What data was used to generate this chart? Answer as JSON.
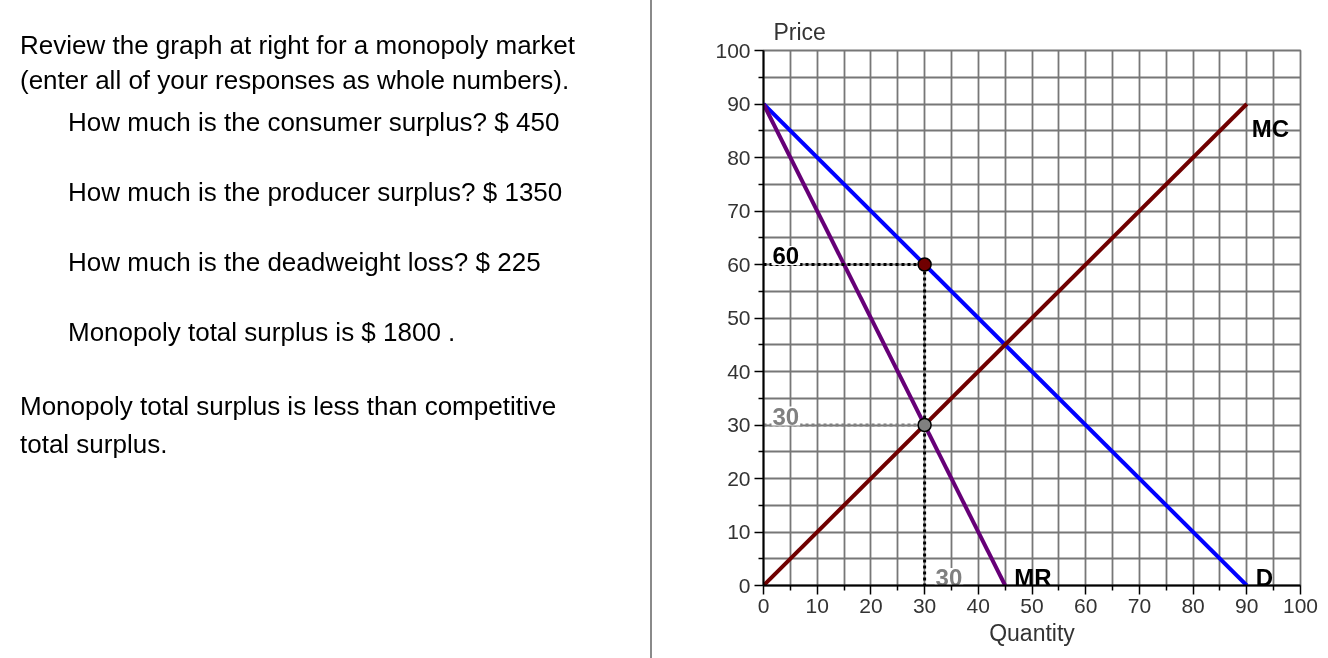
{
  "chart_data": {
    "type": "line",
    "xlabel": "Quantity",
    "ylabel": "Price",
    "xlim": [
      0,
      100
    ],
    "ylim": [
      0,
      100
    ],
    "xticks": [
      0,
      {
        "value": 5,
        "label": null
      },
      10,
      {
        "value": 15,
        "label": null
      },
      20,
      {
        "value": 25,
        "label": null
      },
      30,
      {
        "value": 35,
        "label": null
      },
      40,
      {
        "value": 45,
        "label": null
      },
      50,
      {
        "value": 55,
        "label": null
      },
      60,
      {
        "value": 65,
        "label": null
      },
      70,
      {
        "value": 75,
        "label": null
      },
      80,
      {
        "value": 85,
        "label": null
      },
      90,
      {
        "value": 95,
        "label": null
      },
      100
    ],
    "yticks": [
      0,
      {
        "value": 5,
        "label": null
      },
      10,
      {
        "value": 15,
        "label": null
      },
      20,
      {
        "value": 25,
        "label": null
      },
      30,
      {
        "value": 35,
        "label": null
      },
      40,
      {
        "value": 45,
        "label": null
      },
      50,
      {
        "value": 55,
        "label": null
      },
      60,
      {
        "value": 65,
        "label": null
      },
      70,
      {
        "value": 75,
        "label": null
      },
      80,
      {
        "value": 85,
        "label": null
      },
      90,
      {
        "value": 95,
        "label": null
      },
      100
    ],
    "grid": true,
    "series": [
      {
        "name": "D",
        "color": "#0000ff",
        "x": [
          0,
          90
        ],
        "values": [
          90,
          0
        ]
      },
      {
        "name": "MR",
        "color": "#660077",
        "x": [
          0,
          45
        ],
        "values": [
          90,
          0
        ]
      },
      {
        "name": "MC",
        "color": "#700000",
        "x": [
          0,
          90
        ],
        "values": [
          0,
          90
        ]
      },
      {
        "type": "line",
        "color": "#808080",
        "line_style": "dotted",
        "x": [
          0,
          30
        ],
        "values": [
          30,
          30
        ],
        "value_labels": [
          "30",
          null
        ]
      },
      {
        "type": "line",
        "color": "#000000",
        "line_style": "dotted",
        "x": [
          0,
          30,
          30
        ],
        "values": [
          60,
          60,
          0
        ],
        "value_labels": [
          "60",
          null,
          null
        ]
      },
      {
        "type": "scatter",
        "color": "#808080",
        "marker": "circle",
        "x": [
          30
        ],
        "values": [
          30
        ]
      },
      {
        "type": "scatter",
        "color": "#700000",
        "marker": "circle",
        "x": [
          30
        ],
        "values": [
          60
        ]
      }
    ],
    "annotations": [
      "Review the graph at right for a monopoly market (enter all of your responses as whole numbers).",
      "How much is the consumer surplus? $ 450",
      "How much is the producer surplus? $ 1350",
      "How much is the deadweight loss? $ 225",
      "Monopoly total surplus is $ 1800 .",
      "Monopoly total surplus is less than competitive total surplus.",
      {
        "text": "30",
        "x": 30,
        "y": 0
      }
    ]
  }
}
